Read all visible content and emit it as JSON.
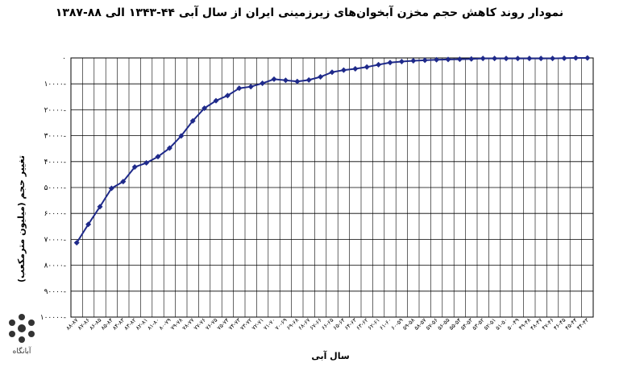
{
  "chart_data": {
    "type": "line",
    "title": "نمودار روند کاهش حجم مخزن آبخوان‌های زیرزمینی ایران از سال آبی ۴۴-۱۳۴۳ الی ۸۸-۱۳۸۷",
    "xlabel": "سال آبی",
    "ylabel": "تغییر حجم (میلیون مترمکعب)",
    "ylim": [
      -100000,
      0
    ],
    "y_ticks": [
      0,
      -10000,
      -20000,
      -30000,
      -40000,
      -50000,
      -60000,
      -70000,
      -80000,
      -90000,
      -100000
    ],
    "y_tick_labels": [
      "۰",
      "۱۰۰۰۰-",
      "۲۰۰۰۰-",
      "۳۰۰۰۰-",
      "۴۰۰۰۰-",
      "۵۰۰۰۰-",
      "۶۰۰۰۰-",
      "۷۰۰۰۰-",
      "۸۰۰۰۰-",
      "۹۰۰۰۰-",
      "۱۰۰۰۰۰-"
    ],
    "grid": true,
    "legend": "none",
    "line_color": "#1f2a8a",
    "categories": [
      "۴۴-۴۳",
      "۴۵-۴۴",
      "۴۶-۴۵",
      "۴۷-۴۶",
      "۴۸-۴۷",
      "۴۹-۴۸",
      "۵۰-۴۹",
      "۵۱-۵۰",
      "۵۲-۵۱",
      "۵۳-۵۲",
      "۵۴-۵۳",
      "۵۵-۵۴",
      "۵۶-۵۵",
      "۵۷-۵۶",
      "۵۸-۵۷",
      "۵۹-۵۸",
      "۶۰-۵۹",
      "۶۱-۶۰",
      "۶۲-۶۱",
      "۶۳-۶۲",
      "۶۴-۶۳",
      "۶۵-۶۴",
      "۶۶-۶۵",
      "۶۷-۶۶",
      "۶۸-۶۷",
      "۶۹-۶۸",
      "۷۰-۶۹",
      "۷۱-۷۰",
      "۷۲-۷۱",
      "۷۳-۷۲",
      "۷۴-۷۳",
      "۷۵-۷۴",
      "۷۶-۷۵",
      "۷۷-۷۶",
      "۷۸-۷۷",
      "۷۹-۷۸",
      "۸۰-۷۹",
      "۸۱-۸۰",
      "۸۲-۸۱",
      "۸۳-۸۲",
      "۸۴-۸۳",
      "۸۵-۸۴",
      "۸۶-۸۵",
      "۸۷-۸۶",
      "۸۸-۸۷"
    ],
    "series": [
      {
        "values": [
          0,
          0,
          -100,
          -200,
          -200,
          -200,
          -200,
          -200,
          -200,
          -200,
          -400,
          -500,
          -600,
          -700,
          -900,
          -1100,
          -1400,
          -1800,
          -2600,
          -3500,
          -4200,
          -4700,
          -5500,
          -7300,
          -8500,
          -9100,
          -8600,
          -8200,
          -9800,
          -11100,
          -11700,
          -14500,
          -16500,
          -19400,
          -24300,
          -30100,
          -34800,
          -38100,
          -40500,
          -42100,
          -47700,
          -50300,
          -57400,
          -64200,
          -71300
        ]
      }
    ]
  },
  "logo": {
    "text": "آبانگاه"
  }
}
